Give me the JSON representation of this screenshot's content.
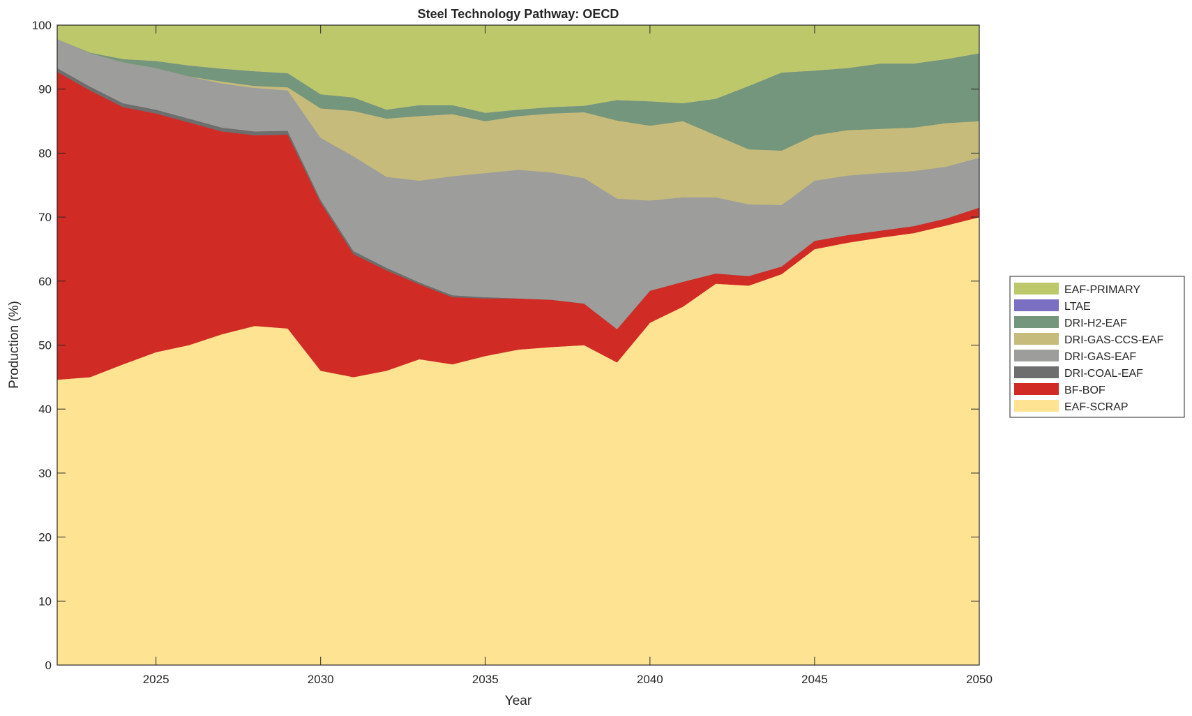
{
  "chart_data": {
    "type": "area",
    "stacked": true,
    "title": "Steel Technology Pathway: OECD",
    "xlabel": "Year",
    "ylabel": "Production (%)",
    "xlim": [
      2022,
      2050
    ],
    "ylim": [
      0,
      100
    ],
    "xticks": [
      2025,
      2030,
      2035,
      2040,
      2045,
      2050
    ],
    "yticks": [
      0,
      10,
      20,
      30,
      40,
      50,
      60,
      70,
      80,
      90,
      100
    ],
    "grid": false,
    "legend_position": "outside-right",
    "x": [
      2022,
      2023,
      2024,
      2025,
      2026,
      2027,
      2028,
      2029,
      2030,
      2031,
      2032,
      2033,
      2034,
      2035,
      2036,
      2037,
      2038,
      2039,
      2040,
      2041,
      2042,
      2043,
      2044,
      2045,
      2046,
      2047,
      2048,
      2049,
      2050
    ],
    "series": [
      {
        "name": "EAF-SCRAP",
        "color": "#fee393",
        "values": [
          44.6,
          45,
          47,
          48.9,
          50,
          51.7,
          53,
          52.6,
          46,
          45,
          46,
          47.8,
          47,
          48.3,
          49.3,
          49.7,
          50,
          47.3,
          53.5,
          56,
          59.6,
          59.3,
          61.1,
          65,
          66,
          66.8,
          67.5,
          68.7,
          70
        ]
      },
      {
        "name": "BF-BOF",
        "color": "#d12b25",
        "values": [
          48.1,
          44.8,
          40.2,
          37.3,
          34.8,
          31.7,
          29.8,
          30.3,
          26.3,
          19.2,
          15.7,
          11.7,
          10.5,
          9,
          8,
          7.4,
          6.5,
          5.2,
          5,
          3.9,
          1.6,
          1.5,
          1.2,
          1.3,
          1.2,
          1.1,
          1.1,
          1.1,
          1.5
        ]
      },
      {
        "name": "DRI-COAL-EAF",
        "color": "#6e6e6e",
        "values": [
          0.6,
          0.6,
          0.6,
          0.6,
          0.6,
          0.6,
          0.6,
          0.6,
          0.4,
          0.5,
          0.4,
          0.3,
          0.3,
          0.2,
          0,
          0,
          0,
          0,
          0,
          0,
          0,
          0,
          0,
          0,
          0,
          0,
          0,
          0,
          0
        ]
      },
      {
        "name": "DRI-GAS-EAF",
        "color": "#9d9d9b",
        "values": [
          4.5,
          5.2,
          6.4,
          6.5,
          6.6,
          6.9,
          6.8,
          6.3,
          9.7,
          14.8,
          14.2,
          15.9,
          18.6,
          19.4,
          20.1,
          19.9,
          19.6,
          20.4,
          14.1,
          13.2,
          11.9,
          11.2,
          9.6,
          9.4,
          9.3,
          9,
          8.6,
          8.1,
          7.8
        ]
      },
      {
        "name": "DRI-GAS-CCS-EAF",
        "color": "#c6bb7a",
        "values": [
          0,
          0,
          0,
          0,
          0,
          0.3,
          0.3,
          0.5,
          4.6,
          7.1,
          9.1,
          10.1,
          9.7,
          8.1,
          8.4,
          9.2,
          10.3,
          12.2,
          11.7,
          11.9,
          9.7,
          8.6,
          8.5,
          7.1,
          7.1,
          6.9,
          6.8,
          6.8,
          5.7
        ]
      },
      {
        "name": "DRI-H2-EAF",
        "color": "#74967c",
        "values": [
          0,
          0.1,
          0.5,
          1.1,
          1.7,
          2.0,
          2.3,
          2.2,
          2.2,
          2.1,
          1.4,
          1.7,
          1.4,
          1.3,
          1.0,
          1.0,
          1.0,
          3.2,
          3.8,
          2.8,
          5.7,
          9.9,
          12.2,
          10.1,
          9.7,
          10.2,
          10,
          10,
          10.6
        ]
      },
      {
        "name": "LTAE",
        "color": "#7a6fc0",
        "values": [
          0,
          0,
          0,
          0,
          0,
          0,
          0,
          0,
          0,
          0,
          0,
          0,
          0,
          0,
          0,
          0,
          0,
          0,
          0,
          0,
          0,
          0,
          0,
          0,
          0,
          0,
          0,
          0,
          0
        ]
      },
      {
        "name": "EAF-PRIMARY",
        "color": "#bdc86b",
        "values": [
          2.2,
          4.3,
          5.3,
          5.6,
          6.3,
          6.8,
          7.2,
          7.5,
          10.8,
          11.3,
          13.2,
          12.5,
          12.5,
          13.7,
          13.2,
          12.8,
          12.6,
          11.7,
          11.9,
          12.2,
          11.5,
          9.5,
          7.4,
          7.1,
          6.7,
          6,
          6,
          5.3,
          4.4
        ]
      }
    ]
  }
}
